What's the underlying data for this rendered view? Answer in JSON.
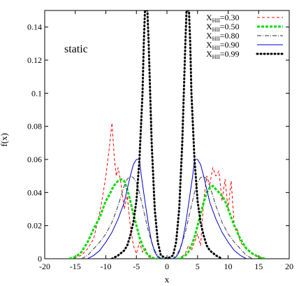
{
  "chart_data": {
    "type": "line",
    "xlabel": "x",
    "ylabel": "f(x)",
    "xlim": [
      -20,
      20
    ],
    "ylim": [
      0,
      0.15
    ],
    "x_ticks": [
      -20,
      -15,
      -10,
      -5,
      0,
      5,
      10,
      15,
      20
    ],
    "y_ticks": [
      0,
      0.02,
      0.04,
      0.06,
      0.08,
      0.1,
      0.12,
      0.14
    ],
    "x_tick_labels": [
      "-20",
      "-15",
      "-10",
      "-5",
      "0",
      "5",
      "10",
      "15",
      "20"
    ],
    "y_tick_labels": [
      "0",
      "0.02",
      "0.04",
      "0.06",
      "0.08",
      "0.1",
      "0.12",
      "0.14"
    ],
    "annotation": "static",
    "legend_position": "top-right",
    "series": [
      {
        "name": "X_HII=0.30",
        "label_main": "X",
        "label_sub": "HII",
        "label_value": "=0.30",
        "color": "#ff0000",
        "style": "dashed",
        "x": [
          -16,
          -14,
          -13,
          -12,
          -11,
          -10.5,
          -10,
          -9.5,
          -9,
          -8.6,
          -8.3,
          -8,
          -7.5,
          -7,
          -6.5,
          -6,
          -5.5,
          -5,
          -4.5,
          -4,
          -3.5,
          -3,
          -2,
          -1,
          0,
          1,
          2,
          3,
          3.5,
          4,
          4.5,
          5,
          5.5,
          6,
          6.5,
          7,
          7.5,
          8,
          8.5,
          9,
          9.5,
          10,
          10.5,
          11,
          11.5,
          12,
          13,
          14,
          15,
          16
        ],
        "y": [
          0,
          0.002,
          0.006,
          0.012,
          0.028,
          0.038,
          0.05,
          0.065,
          0.082,
          0.06,
          0.05,
          0.055,
          0.045,
          0.03,
          0.038,
          0.02,
          0.008,
          0.003,
          0.01,
          0.004,
          0.006,
          0.001,
          0,
          0,
          0,
          0,
          0,
          0.003,
          0.008,
          0.005,
          0.01,
          0.015,
          0.008,
          0.035,
          0.05,
          0.045,
          0.055,
          0.05,
          0.053,
          0.035,
          0.048,
          0.03,
          0.047,
          0.02,
          0.018,
          0.01,
          0.006,
          0.003,
          0.001,
          0
        ]
      },
      {
        "name": "X_HII=0.50",
        "label_main": "X",
        "label_sub": "HII",
        "label_value": "=0.50",
        "color": "#00dd00",
        "style": "thick-dashed",
        "x": [
          -16,
          -15,
          -14,
          -13,
          -12,
          -11,
          -10,
          -9.5,
          -9,
          -8.5,
          -8,
          -7.5,
          -7,
          -6.5,
          -6,
          -5.5,
          -5,
          -4.5,
          -4,
          -3.5,
          -3,
          -2.5,
          -2,
          -1,
          0,
          1,
          2,
          2.5,
          3,
          3.5,
          4,
          4.5,
          5,
          5.5,
          6,
          6.5,
          7,
          7.5,
          8,
          8.5,
          9,
          9.5,
          10,
          11,
          12,
          13,
          14,
          15,
          16
        ],
        "y": [
          0,
          0.001,
          0.004,
          0.01,
          0.018,
          0.025,
          0.035,
          0.038,
          0.042,
          0.045,
          0.047,
          0.048,
          0.047,
          0.042,
          0.035,
          0.027,
          0.02,
          0.013,
          0.008,
          0.004,
          0.002,
          0.001,
          0,
          0,
          0,
          0,
          0,
          0.001,
          0.002,
          0.004,
          0.008,
          0.013,
          0.02,
          0.027,
          0.034,
          0.04,
          0.043,
          0.044,
          0.042,
          0.04,
          0.038,
          0.035,
          0.03,
          0.02,
          0.012,
          0.006,
          0.003,
          0.001,
          0
        ]
      },
      {
        "name": "X_HII=0.80",
        "label_main": "X",
        "label_sub": "HII",
        "label_value": "=0.80",
        "color": "#555555",
        "style": "dash-dot",
        "x": [
          -14,
          -13,
          -12,
          -11,
          -10,
          -9,
          -8,
          -7.5,
          -7,
          -6.5,
          -6,
          -5.5,
          -5,
          -4.5,
          -4,
          -3.5,
          -3,
          -2.5,
          -2,
          -1.5,
          -1,
          0,
          1,
          1.5,
          2,
          2.5,
          3,
          3.5,
          4,
          4.5,
          5,
          5.5,
          6,
          6.5,
          7,
          8,
          9,
          10,
          11,
          12,
          13,
          14
        ],
        "y": [
          0,
          0.002,
          0.006,
          0.01,
          0.015,
          0.022,
          0.032,
          0.038,
          0.044,
          0.048,
          0.05,
          0.049,
          0.046,
          0.04,
          0.032,
          0.024,
          0.016,
          0.01,
          0.005,
          0.002,
          0,
          0,
          0,
          0.002,
          0.005,
          0.01,
          0.016,
          0.024,
          0.032,
          0.04,
          0.046,
          0.049,
          0.05,
          0.048,
          0.044,
          0.032,
          0.022,
          0.015,
          0.01,
          0.006,
          0.002,
          0
        ]
      },
      {
        "name": "X_HII=0.90",
        "label_main": "X",
        "label_sub": "HII",
        "label_value": "=0.90",
        "color": "#0000cc",
        "style": "solid",
        "x": [
          -13,
          -12,
          -11,
          -10,
          -9,
          -8,
          -7,
          -6.5,
          -6,
          -5.5,
          -5,
          -4.5,
          -4.2,
          -4,
          -3.5,
          -3,
          -2.5,
          -2,
          -1.5,
          -1,
          0,
          1,
          1.5,
          2,
          2.5,
          3,
          3.5,
          4,
          4.2,
          4.5,
          5,
          5.5,
          6,
          6.5,
          7,
          8,
          9,
          10,
          11,
          12,
          13
        ],
        "y": [
          0,
          0.002,
          0.005,
          0.01,
          0.016,
          0.024,
          0.034,
          0.042,
          0.05,
          0.057,
          0.06,
          0.06,
          0.05,
          0.045,
          0.032,
          0.02,
          0.01,
          0.004,
          0.001,
          0,
          0,
          0,
          0.001,
          0.004,
          0.01,
          0.02,
          0.032,
          0.045,
          0.05,
          0.06,
          0.06,
          0.057,
          0.05,
          0.042,
          0.034,
          0.024,
          0.016,
          0.01,
          0.005,
          0.002,
          0
        ]
      },
      {
        "name": "X_HII=0.99",
        "label_main": "X",
        "label_sub": "HII",
        "label_value": "=0.99",
        "color": "#000000",
        "style": "dotted",
        "x": [
          -9,
          -8,
          -7,
          -6.5,
          -6,
          -5.5,
          -5,
          -4.5,
          -4,
          -3.8,
          -3.6,
          -3.5,
          -3.4,
          -3.2,
          -3,
          -2.5,
          -2,
          -1.5,
          -1,
          0,
          1,
          1.5,
          2,
          2.5,
          3,
          3.2,
          3.4,
          3.5,
          3.6,
          3.8,
          4,
          4.5,
          5,
          5.5,
          6,
          6.5,
          7,
          8,
          9
        ],
        "y": [
          0,
          0.002,
          0.005,
          0.008,
          0.014,
          0.022,
          0.035,
          0.06,
          0.1,
          0.13,
          0.15,
          0.15,
          0.15,
          0.15,
          0.13,
          0.07,
          0.03,
          0.01,
          0.002,
          0,
          0.002,
          0.01,
          0.03,
          0.07,
          0.13,
          0.15,
          0.15,
          0.15,
          0.15,
          0.13,
          0.1,
          0.06,
          0.035,
          0.022,
          0.014,
          0.008,
          0.005,
          0.002,
          0
        ]
      }
    ]
  }
}
